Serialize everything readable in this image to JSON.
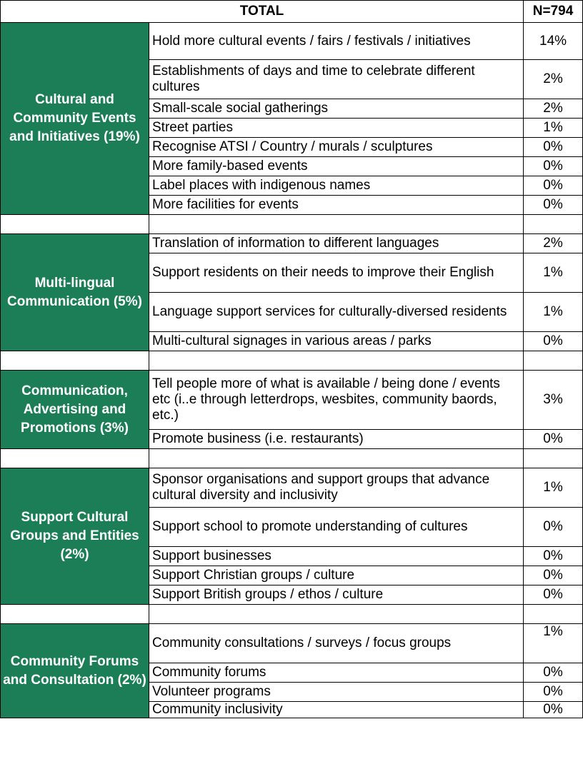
{
  "header": {
    "total_label": "TOTAL",
    "n_label": "N=794"
  },
  "groups": [
    {
      "category": "Cultural and Community Events and Initiatives (19%)",
      "rows": [
        {
          "item": "Hold more cultural events / fairs / festivals / initiatives",
          "value": "14%"
        },
        {
          "item": "Establishments of days and time to celebrate different cultures",
          "value": "2%"
        },
        {
          "item": "Small-scale social gatherings",
          "value": "2%"
        },
        {
          "item": "Street parties",
          "value": "1%"
        },
        {
          "item": "Recognise ATSI / Country / murals / sculptures",
          "value": "0%"
        },
        {
          "item": "More family-based events",
          "value": "0%"
        },
        {
          "item": "Label places with indigenous names",
          "value": "0%"
        },
        {
          "item": "More facilities for events",
          "value": "0%"
        }
      ]
    },
    {
      "category": "Multi-lingual Communication (5%)",
      "rows": [
        {
          "item": "Translation of information to different languages",
          "value": "2%"
        },
        {
          "item": "Support residents on their needs to improve their English",
          "value": "1%"
        },
        {
          "item": "Language support services for culturally-diversed residents",
          "value": "1%"
        },
        {
          "item": "Multi-cultural signages in various areas / parks",
          "value": "0%"
        }
      ]
    },
    {
      "category": "Communication, Advertising and Promotions (3%)",
      "rows": [
        {
          "item": "Tell people more of what is available / being done / events etc (i..e through letterdrops, wesbites, community baords, etc.)",
          "value": "3%"
        },
        {
          "item": "Promote business (i.e. restaurants)",
          "value": "0%"
        }
      ]
    },
    {
      "category": "Support Cultural Groups and Entities (2%)",
      "rows": [
        {
          "item": "Sponsor organisations and support groups that advance cultural diversity and inclusivity",
          "value": "1%"
        },
        {
          "item": "Support school to promote understanding of cultures",
          "value": "0%"
        },
        {
          "item": "Support businesses",
          "value": "0%"
        },
        {
          "item": "Support Christian groups / culture",
          "value": "0%"
        },
        {
          "item": "Support British groups / ethos / culture",
          "value": "0%"
        }
      ]
    },
    {
      "category": "Community Forums and Consultation (2%)",
      "rows": [
        {
          "item": "Community consultations / surveys / focus groups",
          "value": "1%"
        },
        {
          "item": "Community forums",
          "value": "0%"
        },
        {
          "item": "Volunteer programs",
          "value": "0%"
        },
        {
          "item": "Community inclusivity",
          "value": "0%"
        }
      ]
    }
  ]
}
